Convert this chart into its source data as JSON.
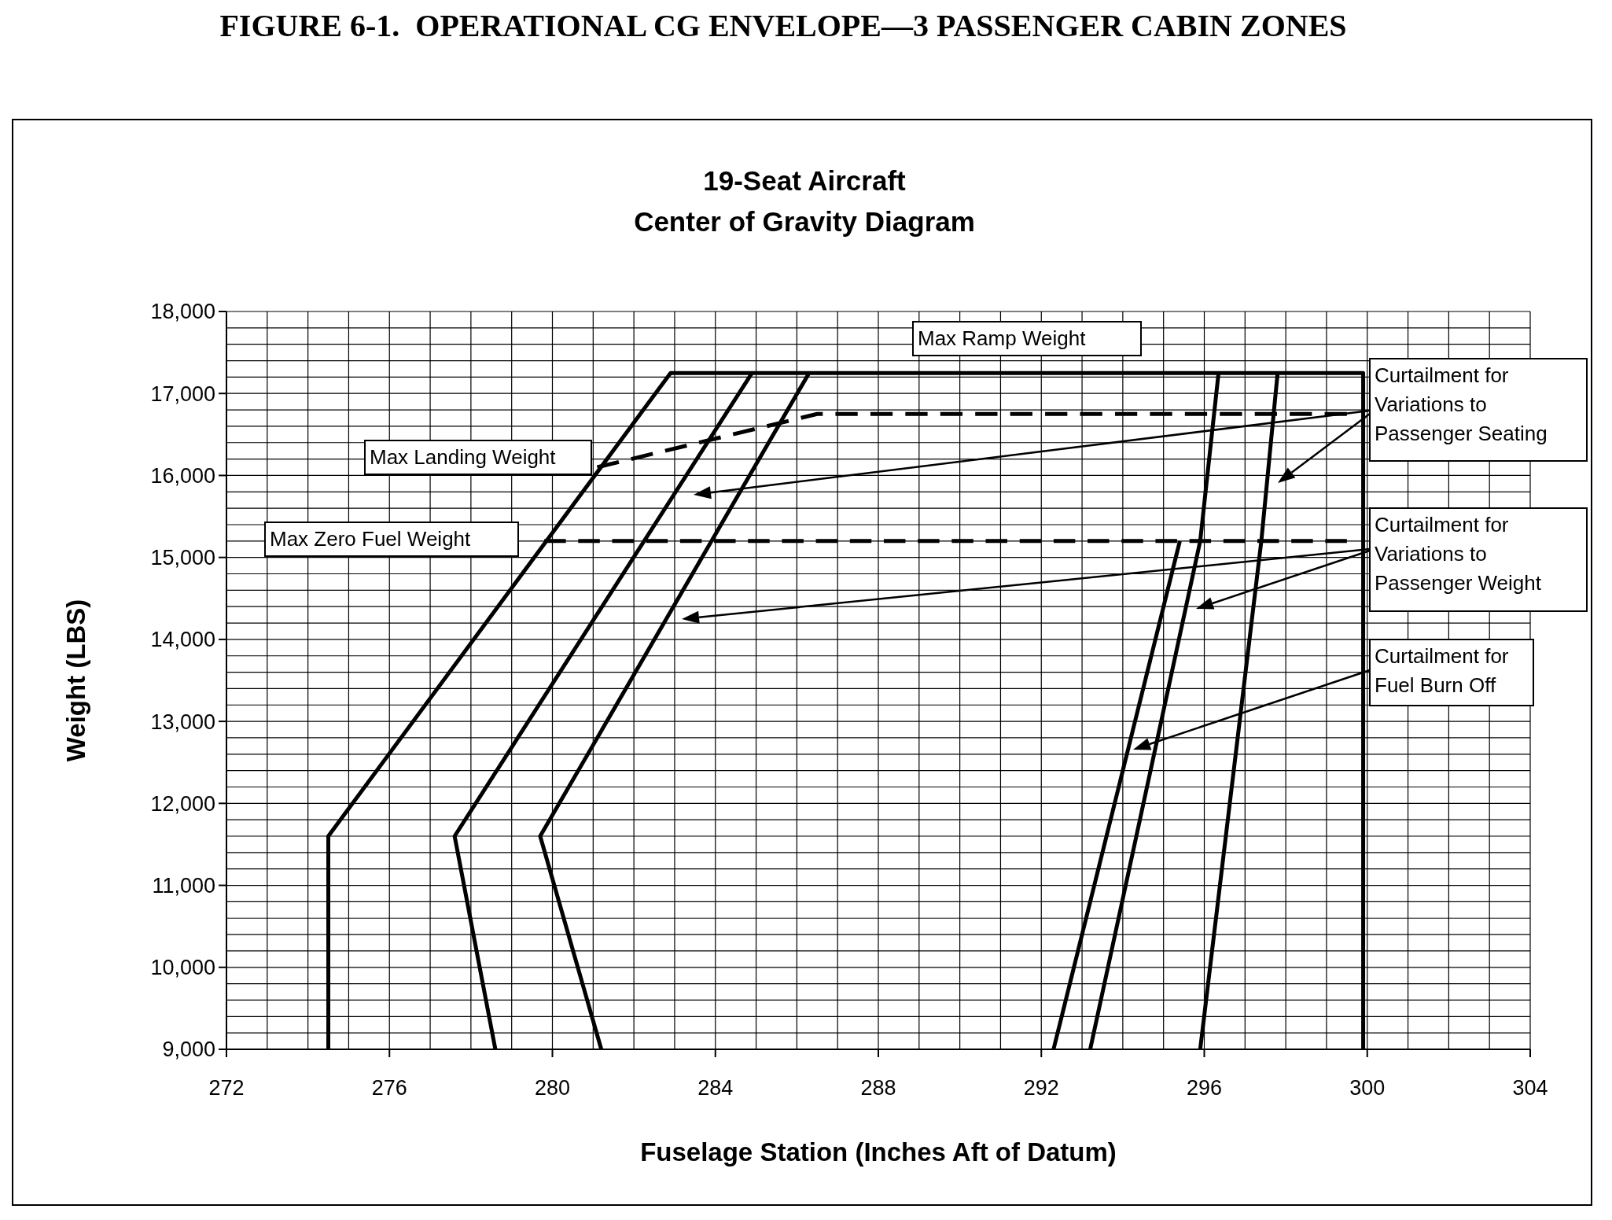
{
  "chart_data": {
    "type": "line",
    "title": "FIGURE 6-1.  OPERATIONAL CG ENVELOPE—3 PASSENGER CABIN ZONES",
    "subtitle": "19-Seat Aircraft\nCenter of Gravity Diagram",
    "xlabel": "Fuselage Station (Inches Aft of Datum)",
    "ylabel": "Weight (LBS)",
    "xlim": [
      272,
      304
    ],
    "ylim": [
      9000,
      18000
    ],
    "xticks": [
      272,
      {
        "value": 273,
        "label": null
      },
      {
        "value": 274,
        "label": null
      },
      {
        "value": 275,
        "label": null
      },
      276,
      {
        "value": 277,
        "label": null
      },
      {
        "value": 278,
        "label": null
      },
      {
        "value": 279,
        "label": null
      },
      280,
      {
        "value": 281,
        "label": null
      },
      {
        "value": 282,
        "label": null
      },
      {
        "value": 283,
        "label": null
      },
      284,
      {
        "value": 285,
        "label": null
      },
      {
        "value": 286,
        "label": null
      },
      {
        "value": 287,
        "label": null
      },
      288,
      {
        "value": 289,
        "label": null
      },
      {
        "value": 290,
        "label": null
      },
      {
        "value": 291,
        "label": null
      },
      292,
      {
        "value": 293,
        "label": null
      },
      {
        "value": 294,
        "label": null
      },
      {
        "value": 295,
        "label": null
      },
      296,
      {
        "value": 297,
        "label": null
      },
      {
        "value": 298,
        "label": null
      },
      {
        "value": 299,
        "label": null
      },
      300,
      {
        "value": 301,
        "label": null
      },
      {
        "value": 302,
        "label": null
      },
      {
        "value": 303,
        "label": null
      },
      304
    ],
    "yticks": [
      {
        "value": 9000,
        "label": "9,000"
      },
      {
        "value": 9200,
        "label": null
      },
      {
        "value": 9400,
        "label": null
      },
      {
        "value": 9600,
        "label": null
      },
      {
        "value": 9800,
        "label": null
      },
      {
        "value": 10000,
        "label": "10,000"
      },
      {
        "value": 10200,
        "label": null
      },
      {
        "value": 10400,
        "label": null
      },
      {
        "value": 10600,
        "label": null
      },
      {
        "value": 10800,
        "label": null
      },
      {
        "value": 11000,
        "label": "11,000"
      },
      {
        "value": 11200,
        "label": null
      },
      {
        "value": 11400,
        "label": null
      },
      {
        "value": 11600,
        "label": null
      },
      {
        "value": 11800,
        "label": null
      },
      {
        "value": 12000,
        "label": "12,000"
      },
      {
        "value": 12200,
        "label": null
      },
      {
        "value": 12400,
        "label": null
      },
      {
        "value": 12600,
        "label": null
      },
      {
        "value": 12800,
        "label": null
      },
      {
        "value": 13000,
        "label": "13,000"
      },
      {
        "value": 13200,
        "label": null
      },
      {
        "value": 13400,
        "label": null
      },
      {
        "value": 13600,
        "label": null
      },
      {
        "value": 13800,
        "label": null
      },
      {
        "value": 14000,
        "label": "14,000"
      },
      {
        "value": 14200,
        "label": null
      },
      {
        "value": 14400,
        "label": null
      },
      {
        "value": 14600,
        "label": null
      },
      {
        "value": 14800,
        "label": null
      },
      {
        "value": 15000,
        "label": "15,000"
      },
      {
        "value": 15200,
        "label": null
      },
      {
        "value": 15400,
        "label": null
      },
      {
        "value": 15600,
        "label": null
      },
      {
        "value": 15800,
        "label": null
      },
      {
        "value": 16000,
        "label": "16,000"
      },
      {
        "value": 16200,
        "label": null
      },
      {
        "value": 16400,
        "label": null
      },
      {
        "value": 16600,
        "label": null
      },
      {
        "value": 16800,
        "label": null
      },
      {
        "value": 17000,
        "label": "17,000"
      },
      {
        "value": 17200,
        "label": null
      },
      {
        "value": 17400,
        "label": null
      },
      {
        "value": 17600,
        "label": null
      },
      {
        "value": 17800,
        "label": null
      },
      {
        "value": 18000,
        "label": "18,000"
      }
    ],
    "grid": true,
    "series": [
      {
        "color": "#000000",
        "line_style": "solid",
        "x": [
          274.5,
          274.5,
          282.9,
          299.9,
          299.9
        ],
        "values": [
          9000,
          11600,
          17250,
          17250,
          9000
        ]
      },
      {
        "color": "#000000",
        "line_style": "solid",
        "x": [
          278.6,
          277.6,
          284.9
        ],
        "values": [
          9000,
          11600,
          17250
        ]
      },
      {
        "color": "#000000",
        "line_style": "solid",
        "x": [
          281.2,
          279.7,
          286.3
        ],
        "values": [
          9000,
          11600,
          17250
        ]
      },
      {
        "color": "#000000",
        "line_style": "solid",
        "x": [
          295.9,
          297.4,
          297.8
        ],
        "values": [
          9000,
          15200,
          17250
        ]
      },
      {
        "color": "#000000",
        "line_style": "solid",
        "x": [
          293.2,
          295.9,
          296.35
        ],
        "values": [
          9000,
          15200,
          17250
        ]
      },
      {
        "color": "#000000",
        "line_style": "solid",
        "x": [
          292.3,
          295.4
        ],
        "values": [
          9000,
          15200
        ]
      },
      {
        "color": "#000000",
        "line_style": "dashed",
        "x": [
          281.1,
          286.5,
          299.5
        ],
        "values": [
          16100,
          16750,
          16750
        ]
      },
      {
        "color": "#000000",
        "line_style": "dashed",
        "x": [
          279.8,
          299.5
        ],
        "values": [
          15200,
          15200
        ]
      }
    ],
    "annotations": [
      "Max Ramp Weight",
      "Max Landing Weight",
      "Max Zero Fuel Weight",
      "Curtailment for\nVariations to\nPassenger Seating",
      "Curtailment for\nVariations to\nPassenger Weight",
      "Curtailment for\nFuel Burn Off"
    ]
  }
}
